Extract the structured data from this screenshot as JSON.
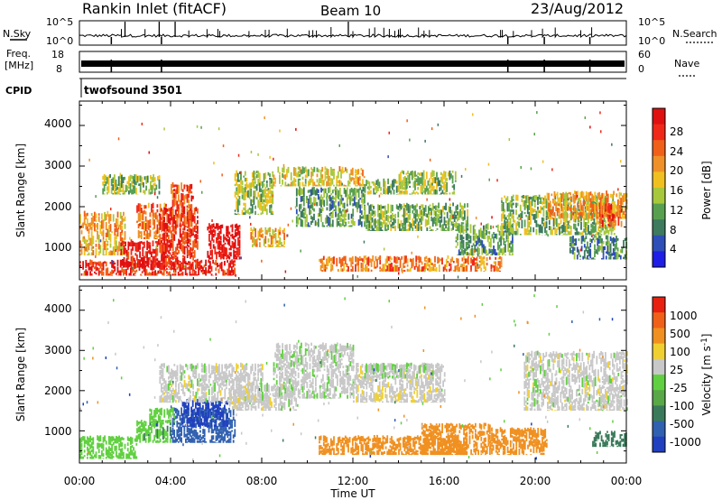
{
  "header": {
    "title": "Rankin Inlet (fitACF)",
    "beam": "Beam 10",
    "date": "23/Aug/2012"
  },
  "noise_panel": {
    "left_label": "N.Sky",
    "left_ticks": [
      "10^5",
      "10^0"
    ],
    "right_label": "N.Search",
    "right_ticks": [
      "10^5",
      "10^0"
    ]
  },
  "freq_panel": {
    "left_label_1": "Freq.",
    "left_label_2": "[MHz]",
    "left_ticks": [
      "18",
      "8"
    ],
    "right_label": "Nave",
    "right_ticks": [
      "60",
      "0"
    ]
  },
  "cpid": {
    "label": "CPID",
    "value": "twofsound 3501"
  },
  "power_panel": {
    "ylabel": "Slant Range [km]",
    "yticks": [
      "4000",
      "3000",
      "2000",
      "1000"
    ],
    "colorbar_label": "Power [dB]",
    "colorbar_ticks": [
      "28",
      "24",
      "20",
      "16",
      "12",
      "8",
      "4"
    ],
    "colors": [
      "#1e1ee6",
      "#2e4fb8",
      "#3e7a5e",
      "#58a050",
      "#a8c83c",
      "#f0c020",
      "#f09028",
      "#f06018",
      "#f02818",
      "#e01010"
    ]
  },
  "velocity_panel": {
    "ylabel": "Slant Range [km]",
    "yticks": [
      "4000",
      "3000",
      "2000",
      "1000"
    ],
    "colorbar_label": "Velocity [m s^-1]",
    "colorbar_ticks": [
      "1000",
      "500",
      "100",
      "25",
      "-25",
      "-100",
      "-500",
      "-1000"
    ],
    "colors": [
      "#2040c0",
      "#3060b0",
      "#3a7a5a",
      "#58a848",
      "#60d040",
      "#c8c8c8",
      "#f0d030",
      "#f09020",
      "#f06018",
      "#e82010"
    ]
  },
  "x_axis": {
    "ticks": [
      "00:00",
      "04:00",
      "08:00",
      "12:00",
      "16:00",
      "20:00",
      "00:00"
    ],
    "label": "Time UT"
  },
  "chart_data": [
    {
      "type": "heatmap",
      "title": "Rankin Inlet (fitACF)",
      "quantity": "Power",
      "xlabel": "Time UT",
      "ylabel": "Slant Range [km]",
      "xlim": [
        0,
        24
      ],
      "ylim": [
        200,
        4600
      ],
      "colorbar": {
        "label": "Power [dB]",
        "range": [
          0,
          30
        ],
        "ticks": [
          4,
          8,
          12,
          16,
          20,
          24,
          28
        ]
      },
      "blobs": [
        {
          "t": [
            0.0,
            6.8
          ],
          "r": [
            300,
            700
          ],
          "v": 27
        },
        {
          "t": [
            0.0,
            2.0
          ],
          "r": [
            800,
            1900
          ],
          "v": 18
        },
        {
          "t": [
            1.8,
            4.0
          ],
          "r": [
            500,
            1200
          ],
          "v": 28
        },
        {
          "t": [
            2.5,
            3.8
          ],
          "r": [
            1200,
            2100
          ],
          "v": 22
        },
        {
          "t": [
            3.5,
            5.2
          ],
          "r": [
            450,
            2000
          ],
          "v": 26
        },
        {
          "t": [
            4.0,
            5.0
          ],
          "r": [
            1500,
            2600
          ],
          "v": 23
        },
        {
          "t": [
            5.6,
            7.0
          ],
          "r": [
            700,
            1600
          ],
          "v": 29
        },
        {
          "t": [
            1.0,
            3.5
          ],
          "r": [
            2300,
            2800
          ],
          "v": 12
        },
        {
          "t": [
            6.8,
            8.5
          ],
          "r": [
            1800,
            2900
          ],
          "v": 13
        },
        {
          "t": [
            7.5,
            9.0
          ],
          "r": [
            1000,
            1500
          ],
          "v": 18
        },
        {
          "t": [
            8.5,
            10.5
          ],
          "r": [
            2500,
            3000
          ],
          "v": 15
        },
        {
          "t": [
            9.5,
            12.5
          ],
          "r": [
            1500,
            2500
          ],
          "v": 10
        },
        {
          "t": [
            10.5,
            12.5
          ],
          "r": [
            2500,
            3000
          ],
          "v": 17
        },
        {
          "t": [
            12.5,
            14.5
          ],
          "r": [
            2300,
            2700
          ],
          "v": 12
        },
        {
          "t": [
            12.5,
            17.0
          ],
          "r": [
            1400,
            2100
          ],
          "v": 11
        },
        {
          "t": [
            10.5,
            18.5
          ],
          "r": [
            400,
            800
          ],
          "v": 21
        },
        {
          "t": [
            14.0,
            16.5
          ],
          "r": [
            2300,
            2900
          ],
          "v": 13
        },
        {
          "t": [
            16.5,
            19.0
          ],
          "r": [
            800,
            1600
          ],
          "v": 10
        },
        {
          "t": [
            18.5,
            23.5
          ],
          "r": [
            1300,
            2300
          ],
          "v": 12
        },
        {
          "t": [
            20.5,
            24.0
          ],
          "r": [
            1700,
            2400
          ],
          "v": 19
        },
        {
          "t": [
            22.8,
            23.8
          ],
          "r": [
            1500,
            2100
          ],
          "v": 24
        },
        {
          "t": [
            21.5,
            24.0
          ],
          "r": [
            700,
            1300
          ],
          "v": 8
        }
      ]
    },
    {
      "type": "heatmap",
      "quantity": "Velocity",
      "xlabel": "Time UT",
      "ylabel": "Slant Range [km]",
      "xlim": [
        0,
        24
      ],
      "ylim": [
        200,
        4600
      ],
      "colorbar": {
        "label": "Velocity [m s^-1]",
        "ticks": [
          1000,
          500,
          100,
          25,
          -25,
          -100,
          -500,
          -1000
        ]
      },
      "blobs": [
        {
          "t": [
            0.0,
            2.5
          ],
          "r": [
            300,
            900
          ],
          "v": 60
        },
        {
          "t": [
            2.5,
            4.0
          ],
          "r": [
            700,
            1300
          ],
          "v": 80
        },
        {
          "t": [
            4.0,
            6.8
          ],
          "r": [
            700,
            1600
          ],
          "v": 700
        },
        {
          "t": [
            4.5,
            6.5
          ],
          "r": [
            1100,
            1800
          ],
          "v": 900
        },
        {
          "t": [
            6.5,
            9.5
          ],
          "r": [
            1500,
            2200
          ],
          "v": 0
        },
        {
          "t": [
            3.5,
            8.0
          ],
          "r": [
            1700,
            2700
          ],
          "v": 0
        },
        {
          "t": [
            8.5,
            12.0
          ],
          "r": [
            1800,
            3200
          ],
          "v": 5
        },
        {
          "t": [
            12.0,
            16.0
          ],
          "r": [
            1700,
            2700
          ],
          "v": -5
        },
        {
          "t": [
            12.5,
            15.5
          ],
          "r": [
            2300,
            2700
          ],
          "v": 10
        },
        {
          "t": [
            10.5,
            17.0
          ],
          "r": [
            400,
            900
          ],
          "v": -200
        },
        {
          "t": [
            15.0,
            18.0
          ],
          "r": [
            400,
            1200
          ],
          "v": -300
        },
        {
          "t": [
            18.0,
            20.5
          ],
          "r": [
            400,
            1100
          ],
          "v": -400
        },
        {
          "t": [
            19.5,
            24.0
          ],
          "r": [
            1500,
            3000
          ],
          "v": 0
        },
        {
          "t": [
            22.5,
            24.0
          ],
          "r": [
            600,
            1000
          ],
          "v": 150
        },
        {
          "t": [
            3.0,
            4.2
          ],
          "r": [
            1200,
            1600
          ],
          "v": 50
        }
      ]
    }
  ]
}
